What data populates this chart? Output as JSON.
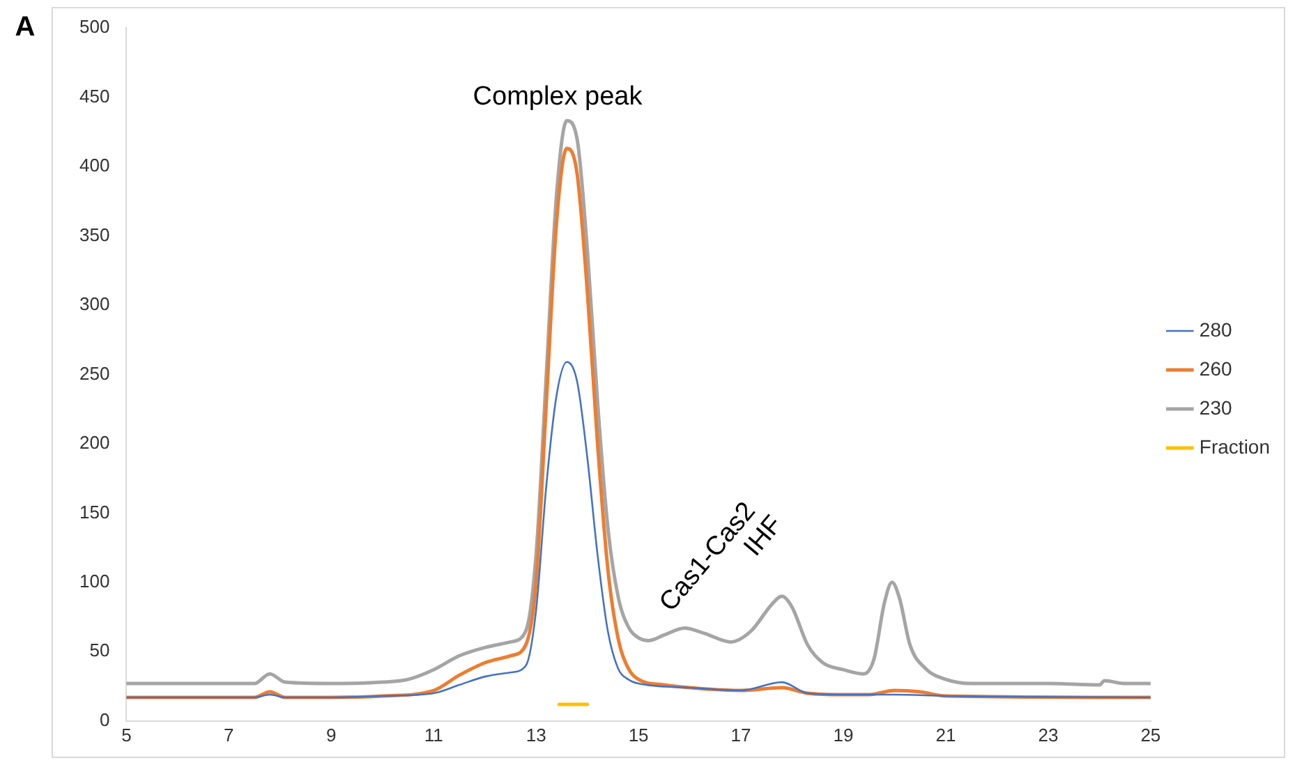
{
  "chart_data": {
    "type": "line",
    "annotations": [
      "A",
      "Complex peak",
      "Cas1-Cas2",
      "IHF"
    ],
    "xlim": [
      5,
      25
    ],
    "xticks": [
      5,
      7,
      9,
      11,
      13,
      15,
      17,
      19,
      21,
      23,
      25
    ],
    "ylim": [
      0,
      500
    ],
    "yticks": [
      0,
      50,
      100,
      150,
      200,
      250,
      300,
      350,
      400,
      450,
      500
    ],
    "grid": false,
    "legend": "right",
    "marker": "none",
    "line_style": "solid",
    "series": [
      {
        "name": "280",
        "color": "#4472c4",
        "x": [
          5,
          7.5,
          7.8,
          8.1,
          9,
          10,
          11,
          11.5,
          12,
          12.5,
          12.8,
          13,
          13.2,
          13.4,
          13.6,
          13.8,
          14,
          14.2,
          14.4,
          14.6,
          14.8,
          15,
          16,
          17,
          17.8,
          18.3,
          19,
          20,
          21,
          25
        ],
        "values": [
          17,
          17,
          19,
          17,
          17,
          18,
          20,
          26,
          32,
          35,
          40,
          80,
          170,
          235,
          259,
          245,
          190,
          120,
          65,
          38,
          30,
          27,
          24,
          22,
          28,
          20,
          19,
          19,
          18,
          17
        ]
      },
      {
        "name": "260",
        "color": "#ed7d31",
        "x": [
          5,
          7.5,
          7.8,
          8.1,
          9,
          10,
          11,
          11.5,
          12,
          12.5,
          12.8,
          13,
          13.2,
          13.4,
          13.6,
          13.8,
          14,
          14.2,
          14.4,
          14.6,
          14.8,
          15,
          15.5,
          16,
          17,
          17.8,
          18.3,
          19,
          19.5,
          20,
          20.5,
          21,
          25
        ],
        "values": [
          17,
          17,
          21,
          17,
          17,
          18,
          22,
          33,
          42,
          47,
          55,
          100,
          230,
          360,
          413,
          395,
          310,
          200,
          110,
          60,
          38,
          30,
          26,
          24,
          22,
          24,
          20,
          19,
          19,
          22,
          21,
          18,
          17
        ]
      },
      {
        "name": "230",
        "color": "#a5a5a5",
        "x": [
          5,
          7.5,
          7.8,
          8.1,
          9,
          10,
          10.5,
          11,
          11.5,
          12,
          12.5,
          12.8,
          13,
          13.2,
          13.4,
          13.6,
          13.8,
          14,
          14.2,
          14.4,
          14.6,
          14.8,
          15,
          15.2,
          15.5,
          15.9,
          16.3,
          16.8,
          17.2,
          17.6,
          17.8,
          18,
          18.3,
          18.6,
          19,
          19.4,
          19.6,
          19.8,
          19.95,
          20.1,
          20.3,
          20.6,
          21,
          21.5,
          22,
          23,
          24,
          24.1,
          24.5,
          25
        ],
        "values": [
          27,
          27,
          34,
          28,
          27,
          28,
          30,
          37,
          47,
          53,
          57,
          65,
          120,
          250,
          380,
          433,
          420,
          340,
          230,
          140,
          90,
          68,
          60,
          58,
          62,
          67,
          63,
          57,
          65,
          84,
          90,
          82,
          55,
          42,
          37,
          34,
          45,
          85,
          100,
          88,
          55,
          38,
          30,
          27,
          27,
          27,
          26,
          29,
          27,
          27
        ]
      },
      {
        "name": "Fraction",
        "color": "#ffc000",
        "x": [
          13.45,
          14
        ],
        "values": [
          12,
          12
        ]
      }
    ]
  }
}
